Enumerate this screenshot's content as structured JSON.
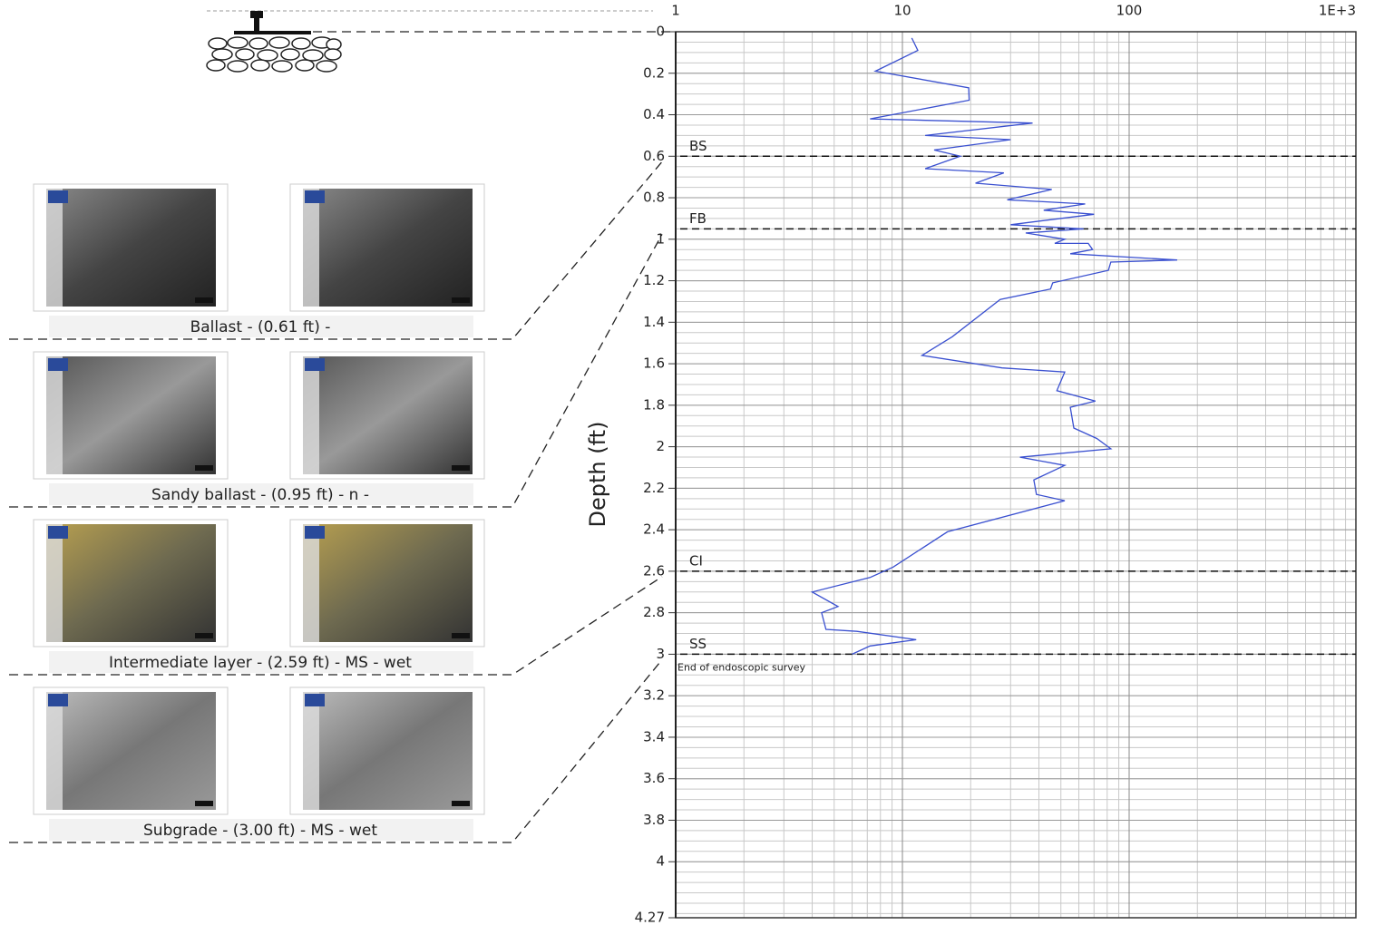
{
  "chart_data": {
    "type": "line",
    "ylabel": "Depth (ft)",
    "xscale": "log",
    "xlim": [
      1,
      1000
    ],
    "xticks": [
      1,
      10,
      100,
      {
        "value": 1000,
        "label": "1E+3"
      }
    ],
    "ylim": [
      0,
      4.27
    ],
    "yinverted": true,
    "yticks": [
      0,
      0.2,
      0.4,
      0.6,
      0.8,
      1,
      1.2,
      1.4,
      1.6,
      1.8,
      2,
      2.2,
      2.4,
      2.6,
      2.8,
      3,
      3.2,
      3.4,
      3.6,
      3.8,
      4,
      4.27
    ],
    "grid": true,
    "series": [
      {
        "color": "#3a50d0",
        "x": [
          11,
          11.7,
          7.6,
          19.6,
          19.7,
          7.2,
          37.5,
          12.6,
          30,
          13.8,
          18,
          12.6,
          28,
          21,
          45.6,
          29,
          64,
          42,
          70,
          30,
          63,
          35,
          52,
          47,
          66,
          69,
          55,
          163,
          83,
          81,
          46,
          45,
          27,
          16.6,
          12.2,
          27.5,
          52,
          48,
          71,
          55,
          57,
          72,
          83,
          33,
          52,
          38,
          39,
          52,
          15.8,
          9.1,
          7.2,
          4.0,
          5.2,
          4.4,
          4.6,
          6.3,
          11.5,
          7.2,
          6.0
        ],
        "y": [
          0.03,
          0.09,
          0.19,
          0.27,
          0.33,
          0.42,
          0.44,
          0.5,
          0.52,
          0.57,
          0.6,
          0.66,
          0.68,
          0.73,
          0.76,
          0.81,
          0.83,
          0.86,
          0.88,
          0.93,
          0.95,
          0.97,
          1.0,
          1.02,
          1.02,
          1.05,
          1.07,
          1.1,
          1.11,
          1.15,
          1.21,
          1.24,
          1.29,
          1.47,
          1.56,
          1.62,
          1.64,
          1.73,
          1.78,
          1.81,
          1.91,
          1.96,
          2.01,
          2.05,
          2.09,
          2.16,
          2.23,
          2.26,
          2.41,
          2.58,
          2.63,
          2.7,
          2.77,
          2.8,
          2.88,
          2.89,
          2.93,
          2.96,
          3.0
        ]
      }
    ],
    "layers": [
      {
        "label": "BS",
        "depth": 0.6
      },
      {
        "label": "FB",
        "depth": 0.95
      },
      {
        "label": "CI",
        "depth": 2.6
      },
      {
        "label": "SS",
        "depth": 3.0
      }
    ],
    "annotation": "End of endoscopic survey"
  },
  "panels": [
    {
      "caption": "Ballast - (0.61 ft) -"
    },
    {
      "caption": "Sandy ballast - (0.95 ft) - n -"
    },
    {
      "caption": "Intermediate layer - (2.59 ft) - MS - wet"
    },
    {
      "caption": "Subgrade - (3.00 ft) - MS - wet"
    }
  ]
}
